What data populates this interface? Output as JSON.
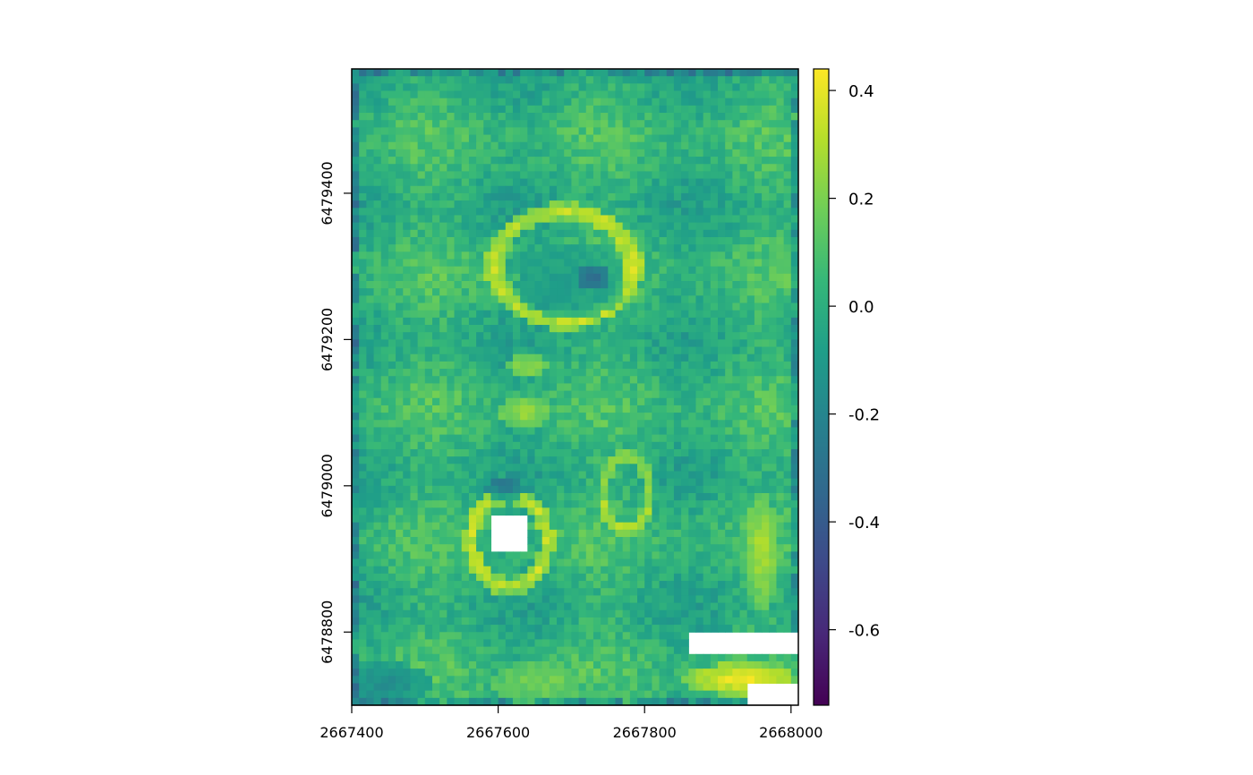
{
  "chart_data": {
    "type": "heatmap",
    "title": "",
    "xlabel": "",
    "ylabel": "",
    "colormap": "viridis",
    "colors": [
      "#440154",
      "#482878",
      "#3e4989",
      "#31688e",
      "#26828e",
      "#1f9e89",
      "#35b779",
      "#6ece58",
      "#b5de2b",
      "#fde725"
    ],
    "xlim": [
      2667400,
      2668010
    ],
    "ylim": [
      6478700,
      6479570
    ],
    "x_ticks": [
      2667400,
      2667600,
      2667800,
      2668000
    ],
    "x_tick_labels": [
      "2667400",
      "2667600",
      "2667800",
      "2668000"
    ],
    "y_ticks": [
      6478800,
      6479000,
      6479200,
      6479400
    ],
    "y_tick_labels": [
      "6478800",
      "6479000",
      "6479200",
      "6479400"
    ],
    "value_range": [
      -0.74,
      0.44
    ],
    "legend": {
      "placement": "right",
      "ticks": [
        0.4,
        0.2,
        0.0,
        -0.2,
        -0.4,
        -0.6
      ],
      "tick_labels": [
        "0.4",
        "0.2",
        "0.0",
        "-0.2",
        "-0.4",
        "-0.6"
      ]
    },
    "raster": {
      "x_range": [
        2667400,
        2668010
      ],
      "y_range": [
        6478700,
        6479570
      ],
      "cells_x": 61,
      "cells_y": 87,
      "background_value": 0.02,
      "features": [
        {
          "kind": "ring",
          "cx": 2667690,
          "cy": 6479300,
          "rx": 95,
          "ry": 75,
          "width": 14,
          "value": 0.3
        },
        {
          "kind": "blob",
          "cx": 2667730,
          "cy": 6479285,
          "rx": 22,
          "ry": 18,
          "value": -0.55
        },
        {
          "kind": "blob",
          "cx": 2667700,
          "cy": 6479280,
          "rx": 75,
          "ry": 55,
          "value": -0.12
        },
        {
          "kind": "ring",
          "cx": 2667615,
          "cy": 6478925,
          "rx": 52,
          "ry": 62,
          "width": 12,
          "value": 0.3
        },
        {
          "kind": "blob",
          "cx": 2667610,
          "cy": 6478995,
          "rx": 28,
          "ry": 14,
          "value": -0.35
        },
        {
          "kind": "blob",
          "cx": 2667635,
          "cy": 6479100,
          "rx": 38,
          "ry": 22,
          "value": 0.25
        },
        {
          "kind": "blob",
          "cx": 2667640,
          "cy": 6479165,
          "rx": 30,
          "ry": 18,
          "value": 0.28
        },
        {
          "kind": "ring",
          "cx": 2667775,
          "cy": 6478990,
          "rx": 32,
          "ry": 50,
          "width": 10,
          "value": 0.24
        },
        {
          "kind": "blob",
          "cx": 2667930,
          "cy": 6478735,
          "rx": 80,
          "ry": 22,
          "value": 0.4
        },
        {
          "kind": "blob",
          "cx": 2667960,
          "cy": 6478910,
          "rx": 22,
          "ry": 80,
          "value": 0.25
        },
        {
          "kind": "blob",
          "cx": 2667450,
          "cy": 6478730,
          "rx": 60,
          "ry": 30,
          "value": -0.2
        },
        {
          "kind": "blob",
          "cx": 2667650,
          "cy": 6478730,
          "rx": 60,
          "ry": 30,
          "value": 0.18
        }
      ],
      "nodata_regions": [
        {
          "x0": 2667590,
          "x1": 2667640,
          "y0": 6478910,
          "y1": 6478960
        },
        {
          "x0": 2667860,
          "x1": 2668010,
          "y0": 6478770,
          "y1": 6478800
        },
        {
          "x0": 2667940,
          "x1": 2668010,
          "y0": 6478700,
          "y1": 6478730
        }
      ]
    }
  }
}
